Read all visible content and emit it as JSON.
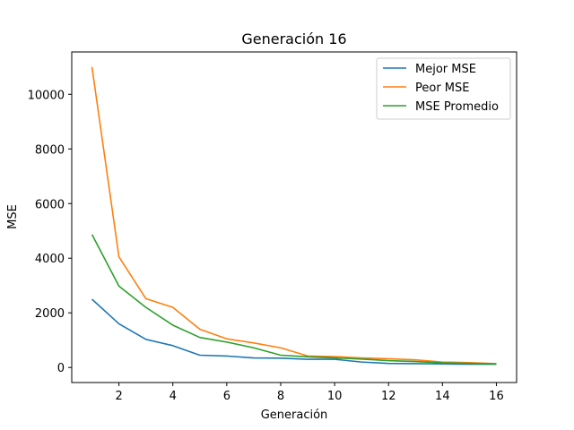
{
  "chart_data": {
    "type": "line",
    "title": "Generación 16",
    "xlabel": "Generación",
    "ylabel": "MSE",
    "xlim": [
      0.25,
      16.75
    ],
    "ylim": [
      -550,
      11550
    ],
    "xticks": [
      2,
      4,
      6,
      8,
      10,
      12,
      14,
      16
    ],
    "yticks": [
      0,
      2000,
      4000,
      6000,
      8000,
      10000
    ],
    "grid": false,
    "legend_position": "top-right",
    "x": [
      1,
      2,
      3,
      4,
      5,
      6,
      7,
      8,
      9,
      10,
      11,
      12,
      13,
      14,
      15,
      16
    ],
    "series": [
      {
        "name": "Mejor MSE",
        "color": "#1f77b4",
        "values": [
          2500,
          1600,
          1030,
          800,
          450,
          420,
          350,
          340,
          300,
          300,
          200,
          150,
          140,
          130,
          120,
          120
        ]
      },
      {
        "name": "Peor MSE",
        "color": "#ff7f0e",
        "values": [
          11000,
          4050,
          2520,
          2200,
          1400,
          1050,
          900,
          720,
          420,
          400,
          350,
          320,
          280,
          200,
          180,
          140
        ]
      },
      {
        "name": "MSE Promedio",
        "color": "#2ca02c",
        "values": [
          4870,
          2980,
          2200,
          1550,
          1100,
          930,
          720,
          450,
          390,
          350,
          310,
          250,
          220,
          170,
          150,
          130
        ]
      }
    ]
  }
}
